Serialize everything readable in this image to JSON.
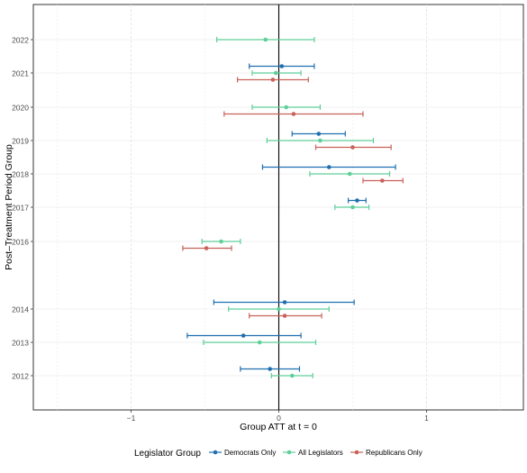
{
  "chart_data": {
    "type": "scatter",
    "subtype": "point-range (coefficient plot)",
    "xlabel": "Group ATT at t = 0",
    "ylabel": "Post–Treatment Period Group",
    "xlim": [
      -1.6,
      1.65
    ],
    "x_ticks": [
      -1,
      0,
      1
    ],
    "x_tick_labels": [
      "−1",
      "0",
      "1"
    ],
    "y_categories": [
      "2012",
      "2013",
      "2014",
      "2016",
      "2017",
      "2018",
      "2019",
      "2020",
      "2021",
      "2022"
    ],
    "reference_line_x": 0,
    "grid": true,
    "legend_position": "bottom",
    "legend_title": "Legislator Group",
    "series": [
      {
        "name": "Democrats Only",
        "color": "#1f6fb0",
        "points": [
          {
            "group": "2012",
            "estimate": -0.06,
            "lower": -0.26,
            "upper": 0.14
          },
          {
            "group": "2013",
            "estimate": -0.24,
            "lower": -0.62,
            "upper": 0.15
          },
          {
            "group": "2014",
            "estimate": 0.04,
            "lower": -0.44,
            "upper": 0.51
          },
          {
            "group": "2017",
            "estimate": 0.53,
            "lower": 0.47,
            "upper": 0.59
          },
          {
            "group": "2018",
            "estimate": 0.34,
            "lower": -0.11,
            "upper": 0.79
          },
          {
            "group": "2019",
            "estimate": 0.27,
            "lower": 0.09,
            "upper": 0.45
          },
          {
            "group": "2021",
            "estimate": 0.02,
            "lower": -0.2,
            "upper": 0.24
          }
        ]
      },
      {
        "name": "All Legislators",
        "color": "#5fcf9a",
        "points": [
          {
            "group": "2012",
            "estimate": 0.09,
            "lower": -0.05,
            "upper": 0.23
          },
          {
            "group": "2013",
            "estimate": -0.13,
            "lower": -0.51,
            "upper": 0.25
          },
          {
            "group": "2014",
            "estimate": 0.0,
            "lower": -0.34,
            "upper": 0.34
          },
          {
            "group": "2016",
            "estimate": -0.39,
            "lower": -0.52,
            "upper": -0.26
          },
          {
            "group": "2017",
            "estimate": 0.5,
            "lower": 0.38,
            "upper": 0.61
          },
          {
            "group": "2018",
            "estimate": 0.48,
            "lower": 0.21,
            "upper": 0.75
          },
          {
            "group": "2019",
            "estimate": 0.28,
            "lower": -0.08,
            "upper": 0.64
          },
          {
            "group": "2020",
            "estimate": 0.05,
            "lower": -0.18,
            "upper": 0.28
          },
          {
            "group": "2021",
            "estimate": -0.02,
            "lower": -0.18,
            "upper": 0.15
          },
          {
            "group": "2022",
            "estimate": -0.09,
            "lower": -0.42,
            "upper": 0.24
          }
        ]
      },
      {
        "name": "Republicans Only",
        "color": "#c8625a",
        "points": [
          {
            "group": "2014",
            "estimate": 0.04,
            "lower": -0.2,
            "upper": 0.29
          },
          {
            "group": "2016",
            "estimate": -0.49,
            "lower": -0.65,
            "upper": -0.32
          },
          {
            "group": "2018",
            "estimate": 0.7,
            "lower": 0.57,
            "upper": 0.84
          },
          {
            "group": "2019",
            "estimate": 0.5,
            "lower": 0.25,
            "upper": 0.76
          },
          {
            "group": "2020",
            "estimate": 0.1,
            "lower": -0.37,
            "upper": 0.57
          },
          {
            "group": "2021",
            "estimate": -0.04,
            "lower": -0.28,
            "upper": 0.2
          }
        ]
      }
    ]
  }
}
